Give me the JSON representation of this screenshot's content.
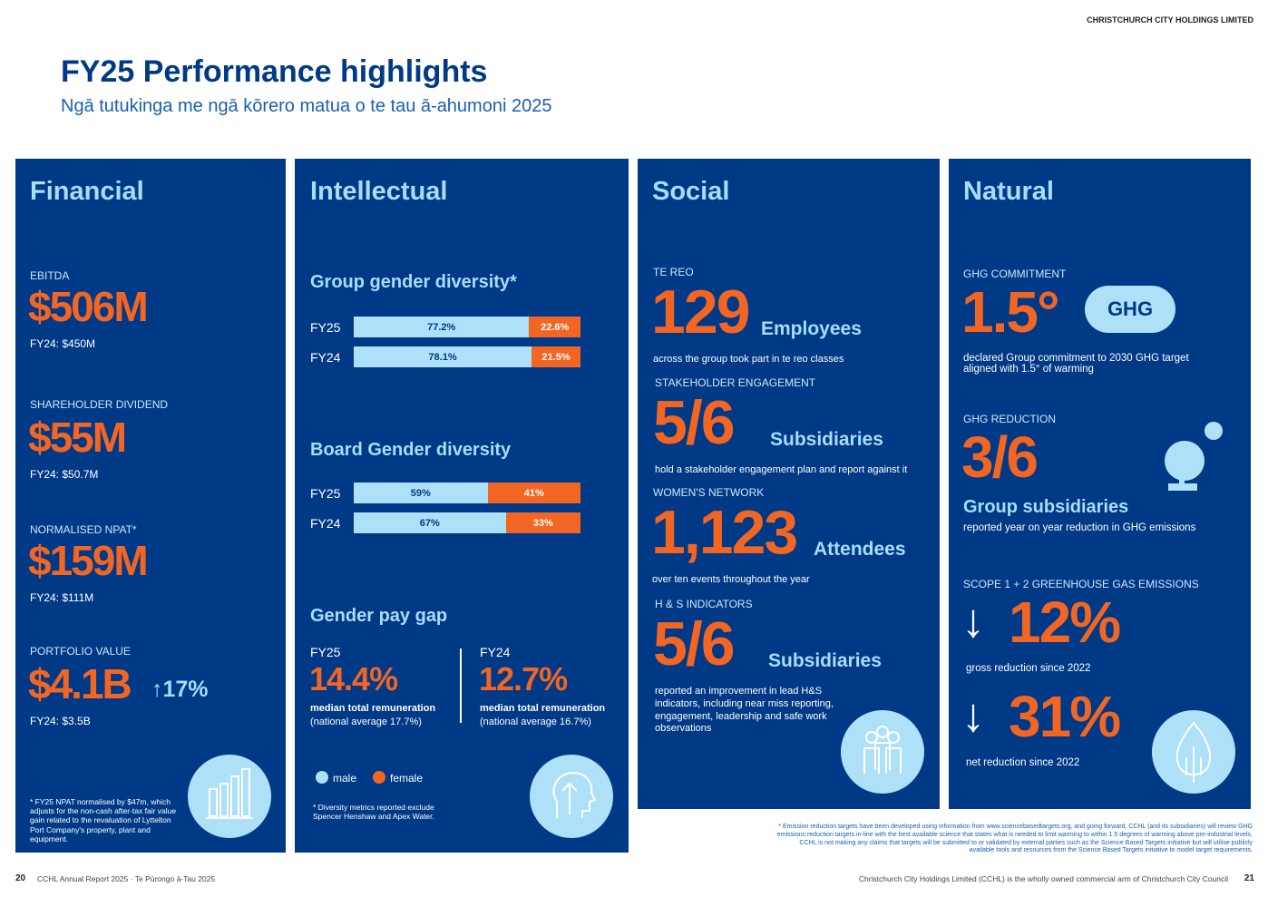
{
  "header": {
    "company": "CHRISTCHURCH CITY HOLDINGS LIMITED",
    "title": "FY25 Performance highlights",
    "subtitle": "Ngā tutukinga me ngā kōrero matua o te tau ā-ahumoni 2025"
  },
  "financial": {
    "title": "Financial",
    "ebitda": {
      "label": "EBITDA",
      "value": "$506M",
      "prior": "FY24: $450M"
    },
    "dividend": {
      "label": "SHAREHOLDER DIVIDEND",
      "value": "$55M",
      "prior": "FY24: $50.7M"
    },
    "npat": {
      "label": "NORMALISED NPAT*",
      "value": "$159M",
      "prior": "FY24: $111M"
    },
    "portfolio": {
      "label": "PORTFOLIO VALUE",
      "value": "$4.1B",
      "change": "↑17%",
      "prior": "FY24: $3.5B"
    },
    "footnote": "* FY25 NPAT normalised by $47m, which adjusts for the non-cash after-tax fair value gain related to the revaluation of Lyttelton Port Company's property, plant and equipment.",
    "icon": "bar-chart-icon"
  },
  "intellectual": {
    "title": "Intellectual",
    "group_title": "Group gender diversity*",
    "group": [
      {
        "year": "FY25",
        "male": 77.2,
        "female": 22.6,
        "male_label": "77.2%",
        "female_label": "22.6%"
      },
      {
        "year": "FY24",
        "male": 78.1,
        "female": 21.5,
        "male_label": "78.1%",
        "female_label": "21.5%"
      }
    ],
    "board_title": "Board Gender diversity",
    "board": [
      {
        "year": "FY25",
        "male": 59,
        "female": 41,
        "male_label": "59%",
        "female_label": "41%"
      },
      {
        "year": "FY24",
        "male": 67,
        "female": 33,
        "male_label": "67%",
        "female_label": "33%"
      }
    ],
    "pay_title": "Gender pay gap",
    "pay": [
      {
        "year": "FY25",
        "value": "14.4%",
        "desc": "median total remuneration",
        "avg": "(national average 17.7%)"
      },
      {
        "year": "FY24",
        "value": "12.7%",
        "desc": "median total remuneration",
        "avg": "(national average 16.7%)"
      }
    ],
    "legend": {
      "male": "male",
      "female": "female"
    },
    "colors": {
      "male": "#aee0f7",
      "female": "#f26522"
    },
    "footnote": "* Diversity metrics reported exclude Spencer Henshaw and Apex Water.",
    "icon": "head-arrow-icon"
  },
  "social": {
    "title": "Social",
    "tereo": {
      "label": "TE REO",
      "value": "129",
      "unit": "Employees",
      "desc": "across the group took part in te reo classes"
    },
    "stakeholder": {
      "label": "STAKEHOLDER ENGAGEMENT",
      "value": "5/6",
      "unit": "Subsidiaries",
      "desc": "hold a stakeholder engagement plan and report against it"
    },
    "women": {
      "label": "WOMEN'S NETWORK",
      "value": "1,123",
      "unit": "Attendees",
      "desc": "over ten events throughout the year"
    },
    "hs": {
      "label": "H & S INDICATORS",
      "value": "5/6",
      "unit": "Subsidiaries",
      "desc": "reported an improvement in lead H&S indicators, including near miss reporting, engagement, leadership and safe work observations"
    },
    "icon": "people-icon"
  },
  "natural": {
    "title": "Natural",
    "commitment": {
      "label": "GHG COMMITMENT",
      "value": "1.5°",
      "badge": "GHG",
      "desc": "declared Group commitment to 2030 GHG target aligned with 1.5° of warming"
    },
    "reduction": {
      "label": "GHG REDUCTION",
      "value": "3/6",
      "unit": "Group subsidiaries",
      "desc": "reported year on year reduction in GHG emissions"
    },
    "scope": {
      "label": "SCOPE 1 + 2 GREENHOUSE GAS EMISSIONS",
      "gross": "12%",
      "gross_desc": "gross reduction since 2022",
      "net": "31%",
      "net_desc": "net reduction since 2022"
    },
    "icon": "energy-icon"
  },
  "emissions_note": "* Emission reduction targets have been developed using information from www.sciencebasedtargets.org, and going forward, CCHL (and its subsidiaries) will review GHG emissions reduction targets in-line with the best available science that states what is needed to limit warming to within 1.5 degrees of warming above pre-industrial levels. CCHL is not making any claims that targets will be submitted to or validated by external parties such as the Science Based Targets initiative but will utilise publicly available tools and resources from the Science Based Targets initiative to model target requirements.",
  "footer": {
    "left_page": "20",
    "left_text": "CCHL Annual Report 2025 · Te Pūrongo ā-Tau 2025",
    "right_text": "Christchurch City Holdings Limited (CCHL) is the wholly owned commercial arm of Christchurch City Council",
    "right_page": "21"
  }
}
